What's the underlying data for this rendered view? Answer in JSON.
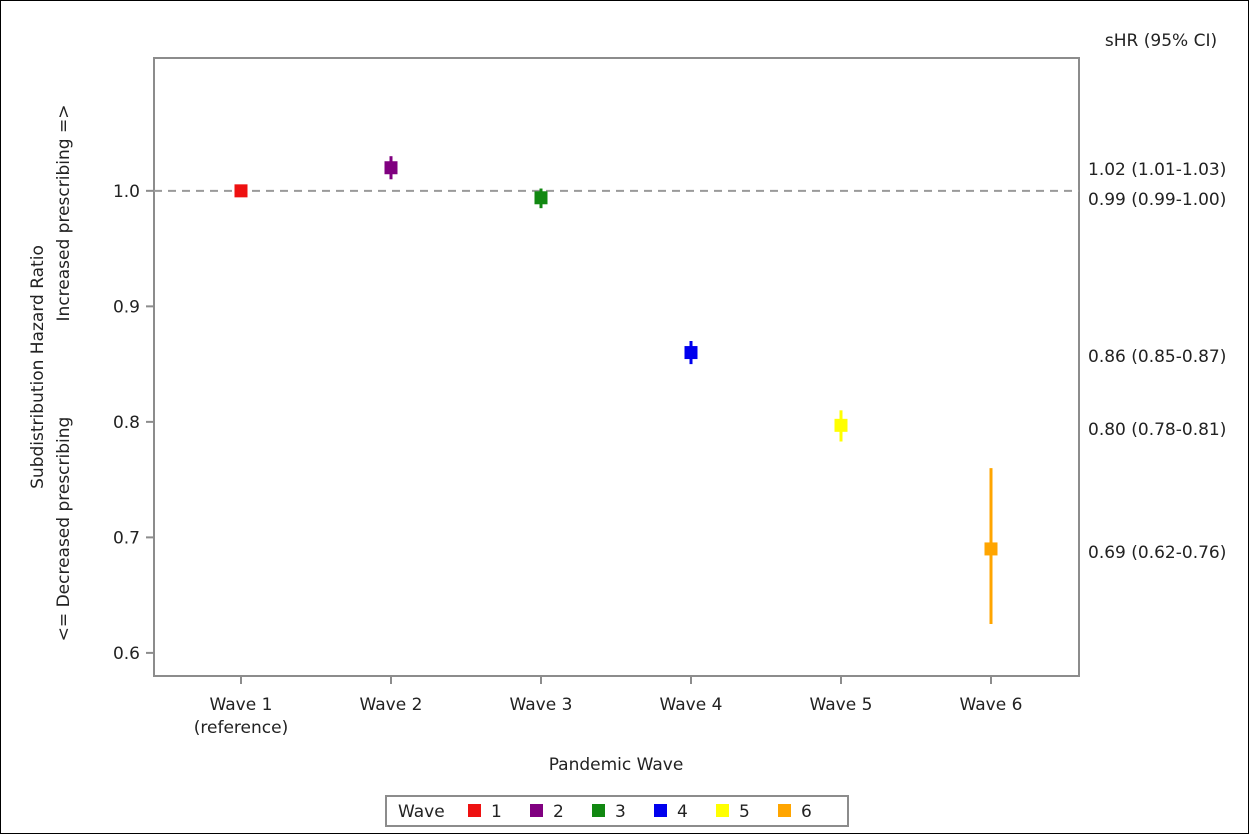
{
  "chart_data": {
    "type": "scatter",
    "title": "",
    "xlabel": "Pandemic Wave",
    "ylabel": "Subdistribution Hazard Ratio",
    "ylabel_up": "Increased prescribing =>",
    "ylabel_down": "<= Decreased prescribing",
    "ylim": [
      0.58,
      1.115
    ],
    "yticks": [
      "0.6",
      "0.7",
      "0.8",
      "0.9",
      "1.0"
    ],
    "reference_line": 1.0,
    "right_header": "sHR (95% CI)",
    "categories": [
      {
        "label": "Wave 1",
        "sublabel": "(reference)"
      },
      {
        "label": "Wave 2",
        "sublabel": ""
      },
      {
        "label": "Wave 3",
        "sublabel": ""
      },
      {
        "label": "Wave 4",
        "sublabel": ""
      },
      {
        "label": "Wave 5",
        "sublabel": ""
      },
      {
        "label": "Wave 6",
        "sublabel": ""
      }
    ],
    "points": [
      {
        "wave": "1",
        "value": 1.0,
        "lower": 1.0,
        "upper": 1.0,
        "color": "#ee1111",
        "label": ""
      },
      {
        "wave": "2",
        "value": 1.02,
        "lower": 1.01,
        "upper": 1.03,
        "color": "#800080",
        "label": "1.02 (1.01-1.03)"
      },
      {
        "wave": "3",
        "value": 0.994,
        "lower": 0.985,
        "upper": 1.002,
        "color": "#118811",
        "label": "0.99 (0.99-1.00)"
      },
      {
        "wave": "4",
        "value": 0.86,
        "lower": 0.85,
        "upper": 0.87,
        "color": "#0000ee",
        "label": "0.86 (0.85-0.87)"
      },
      {
        "wave": "5",
        "value": 0.797,
        "lower": 0.783,
        "upper": 0.81,
        "color": "#ffff00",
        "label": "0.80 (0.78-0.81)"
      },
      {
        "wave": "6",
        "value": 0.69,
        "lower": 0.625,
        "upper": 0.76,
        "color": "#ffa500",
        "label": "0.69 (0.62-0.76)"
      }
    ],
    "legend": {
      "title": "Wave",
      "position": "bottom",
      "entries": [
        "1",
        "2",
        "3",
        "4",
        "5",
        "6"
      ]
    }
  }
}
